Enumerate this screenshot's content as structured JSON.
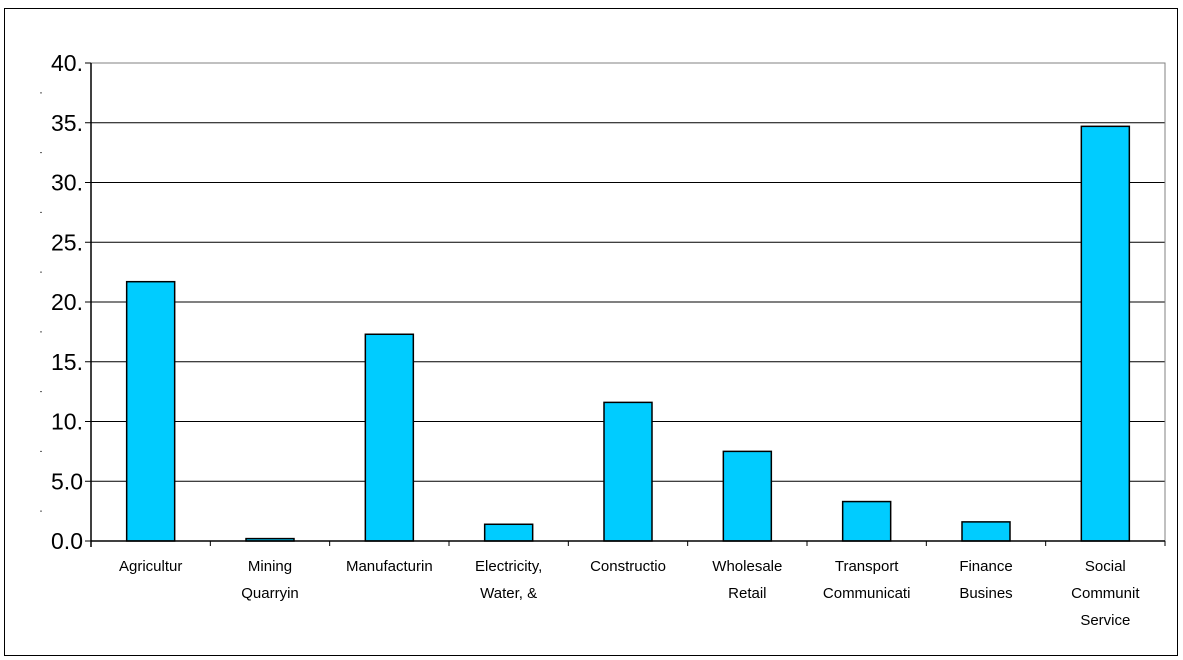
{
  "chart_data": {
    "type": "bar",
    "title": "",
    "xlabel": "",
    "ylabel": "",
    "categories": [
      [
        "Agricultur"
      ],
      [
        "Mining",
        "Quarryin"
      ],
      [
        "Manufacturin"
      ],
      [
        "Electricity,",
        "Water, &"
      ],
      [
        "Constructio"
      ],
      [
        "Wholesale",
        "Retail"
      ],
      [
        "Transport",
        "Communicati"
      ],
      [
        "Finance",
        "Busines"
      ],
      [
        "Social",
        "Communit",
        "Service"
      ]
    ],
    "values": [
      21.7,
      0.2,
      17.3,
      1.4,
      11.6,
      7.5,
      3.3,
      1.6,
      34.7
    ],
    "ylim": [
      0,
      40
    ],
    "yticks": [
      {
        "value": 0,
        "label": "0.0"
      },
      {
        "value": 5,
        "label": "5.0"
      },
      {
        "value": 10,
        "label": "10."
      },
      {
        "value": 15,
        "label": "15."
      },
      {
        "value": 20,
        "label": "20."
      },
      {
        "value": 25,
        "label": "25."
      },
      {
        "value": 30,
        "label": "30."
      },
      {
        "value": 35,
        "label": "35."
      },
      {
        "value": 40,
        "label": "40."
      }
    ],
    "grid": true,
    "legend": "none",
    "bar_color": "#00CCFF",
    "bar_edge_color": "#000000",
    "grid_color": "#000000",
    "plot_border_color": "#808080"
  }
}
